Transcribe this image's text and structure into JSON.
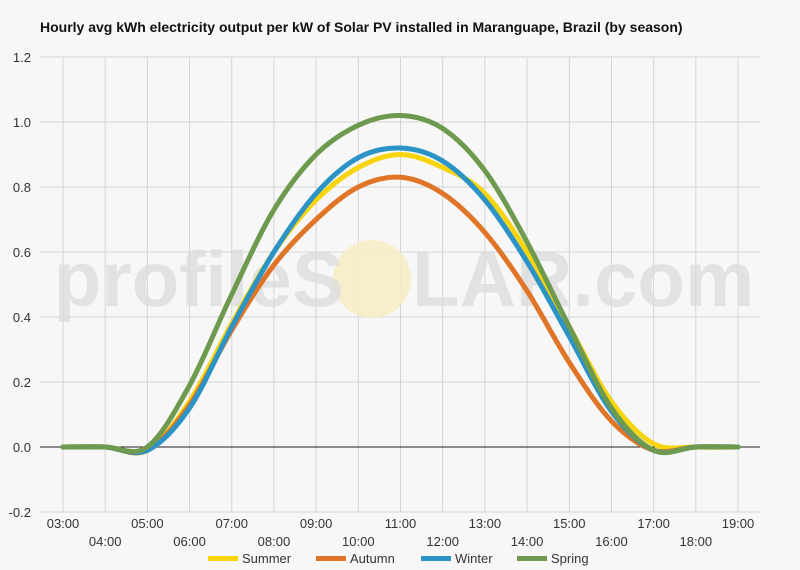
{
  "chart_data": {
    "type": "line",
    "title": "Hourly avg kWh electricity output per kW of Solar PV installed in Maranguape, Brazil (by season)",
    "xlabel": "",
    "ylabel": "",
    "ylim": [
      -0.2,
      1.2
    ],
    "yticks": [
      "1.2",
      "1.0",
      "0.8",
      "0.6",
      "0.4",
      "0.2",
      "0.0",
      "-0.2"
    ],
    "x": [
      "03:00",
      "04:00",
      "05:00",
      "06:00",
      "07:00",
      "08:00",
      "09:00",
      "10:00",
      "11:00",
      "12:00",
      "13:00",
      "14:00",
      "15:00",
      "16:00",
      "17:00",
      "18:00",
      "19:00"
    ],
    "grid": true,
    "legend_position": "bottom",
    "series": [
      {
        "name": "Summer",
        "color": "#f7d40b",
        "values": [
          0,
          0,
          -0.01,
          0.14,
          0.38,
          0.6,
          0.76,
          0.86,
          0.9,
          0.86,
          0.78,
          0.6,
          0.37,
          0.14,
          0.01,
          0,
          0
        ]
      },
      {
        "name": "Autumn",
        "color": "#e07427",
        "values": [
          0,
          0,
          -0.01,
          0.13,
          0.36,
          0.56,
          0.7,
          0.8,
          0.83,
          0.78,
          0.66,
          0.48,
          0.26,
          0.08,
          -0.01,
          0,
          0
        ]
      },
      {
        "name": "Winter",
        "color": "#2b93c6",
        "values": [
          0,
          0,
          -0.01,
          0.12,
          0.37,
          0.6,
          0.78,
          0.89,
          0.92,
          0.88,
          0.76,
          0.57,
          0.34,
          0.11,
          -0.01,
          0,
          0
        ]
      },
      {
        "name": "Spring",
        "color": "#6d9a4e",
        "values": [
          0,
          0,
          0,
          0.19,
          0.47,
          0.73,
          0.9,
          0.99,
          1.02,
          0.98,
          0.85,
          0.63,
          0.37,
          0.12,
          -0.01,
          0,
          0
        ]
      }
    ]
  },
  "watermark": {
    "part1": "profile",
    "part2": "S",
    "part3": "LAR.com"
  }
}
